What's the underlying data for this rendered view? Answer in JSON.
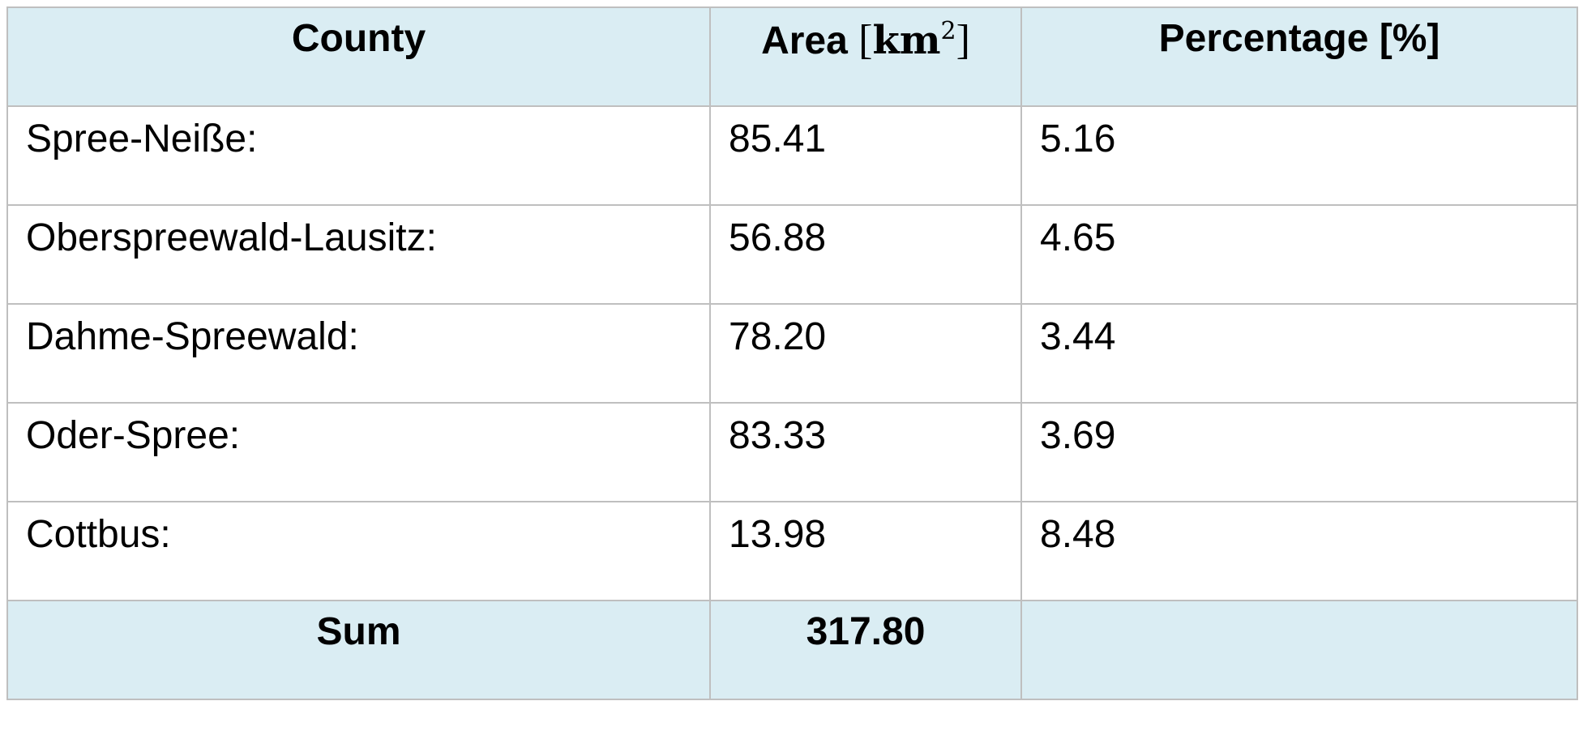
{
  "table": {
    "headers": {
      "county": "County",
      "area_prefix": "Area",
      "area_unit_open": "[",
      "area_unit": "km",
      "area_unit_exp": "2",
      "area_unit_close": "]",
      "percentage": "Percentage [%]"
    },
    "rows": [
      {
        "county": "Spree-Neiße:",
        "area": "85.41",
        "percentage": "5.16"
      },
      {
        "county": "Oberspreewald-Lausitz:",
        "area": "56.88",
        "percentage": "4.65"
      },
      {
        "county": "Dahme-Spreewald:",
        "area": "78.20",
        "percentage": "3.44"
      },
      {
        "county": "Oder-Spree:",
        "area": "83.33",
        "percentage": "3.69"
      },
      {
        "county": "Cottbus:",
        "area": "13.98",
        "percentage": "8.48"
      }
    ],
    "sum": {
      "label": "Sum",
      "area": "317.80",
      "percentage": ""
    }
  },
  "colors": {
    "header_bg": "#daedf3",
    "border": "#bfbfbf",
    "text": "#000000"
  }
}
